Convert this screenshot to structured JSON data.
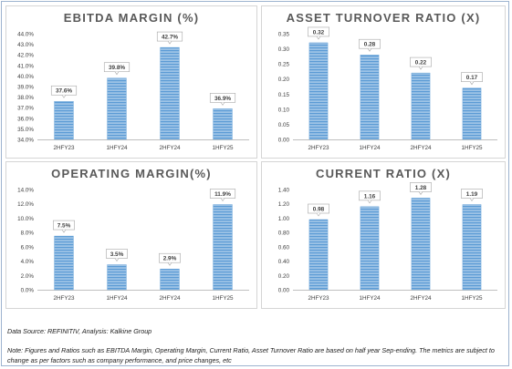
{
  "chart_data": [
    {
      "type": "bar",
      "title": "EBITDA MARGIN (%)",
      "categories": [
        "2HFY23",
        "1HFY24",
        "2HFY24",
        "1HFY25"
      ],
      "values": [
        37.6,
        39.8,
        42.7,
        36.9
      ],
      "labels": [
        "37.6%",
        "39.8%",
        "42.7%",
        "36.9%"
      ],
      "ylim": [
        34.0,
        44.0
      ],
      "yticks": [
        "34.0%",
        "35.0%",
        "36.0%",
        "37.0%",
        "38.0%",
        "39.0%",
        "40.0%",
        "41.0%",
        "42.0%",
        "43.0%",
        "44.0%"
      ],
      "xlabel": "",
      "ylabel": "",
      "grid": false
    },
    {
      "type": "bar",
      "title": "ASSET TURNOVER RATIO (X)",
      "categories": [
        "2HFY23",
        "1HFY24",
        "2HFY24",
        "1HFY25"
      ],
      "values": [
        0.32,
        0.28,
        0.22,
        0.17
      ],
      "labels": [
        "0.32",
        "0.28",
        "0.22",
        "0.17"
      ],
      "ylim": [
        0.0,
        0.35
      ],
      "yticks": [
        "0.00",
        "0.05",
        "0.10",
        "0.15",
        "0.20",
        "0.25",
        "0.30",
        "0.35"
      ],
      "xlabel": "",
      "ylabel": "",
      "grid": false
    },
    {
      "type": "bar",
      "title": "OPERATING MARGIN(%)",
      "categories": [
        "2HFY23",
        "1HFY24",
        "2HFY24",
        "1HFY25"
      ],
      "values": [
        7.5,
        3.5,
        2.9,
        11.9
      ],
      "labels": [
        "7.5%",
        "3.5%",
        "2.9%",
        "11.9%"
      ],
      "ylim": [
        0.0,
        14.0
      ],
      "yticks": [
        "0.0%",
        "2.0%",
        "4.0%",
        "6.0%",
        "8.0%",
        "10.0%",
        "12.0%",
        "14.0%"
      ],
      "xlabel": "",
      "ylabel": "",
      "grid": false
    },
    {
      "type": "bar",
      "title": "CURRENT RATIO (X)",
      "categories": [
        "2HFY23",
        "1HFY24",
        "2HFY24",
        "1HFY25"
      ],
      "values": [
        0.98,
        1.16,
        1.28,
        1.19
      ],
      "labels": [
        "0.98",
        "1.16",
        "1.28",
        "1.19"
      ],
      "ylim": [
        0.0,
        1.4
      ],
      "yticks": [
        "0.00",
        "0.20",
        "0.40",
        "0.60",
        "0.80",
        "1.00",
        "1.20",
        "1.40"
      ],
      "xlabel": "",
      "ylabel": "",
      "grid": false
    }
  ],
  "colors": {
    "bar_fill": "#9dc3e6",
    "bar_stripe": "#5b9bd5",
    "axis": "#bfbfbf",
    "tick_text": "#404040",
    "title_text": "#595959"
  },
  "footer": {
    "source": "Data Source: REFINITIV, Analysis: Kalkine Group",
    "note": "Note: Figures and Ratios such as EBITDA Margin, Operating Margin, Current Ratio, Asset Turnover Ratio are based on half year Sep-ending. The metrics are subject to change as per factors such as company performance, and price changes, etc"
  }
}
